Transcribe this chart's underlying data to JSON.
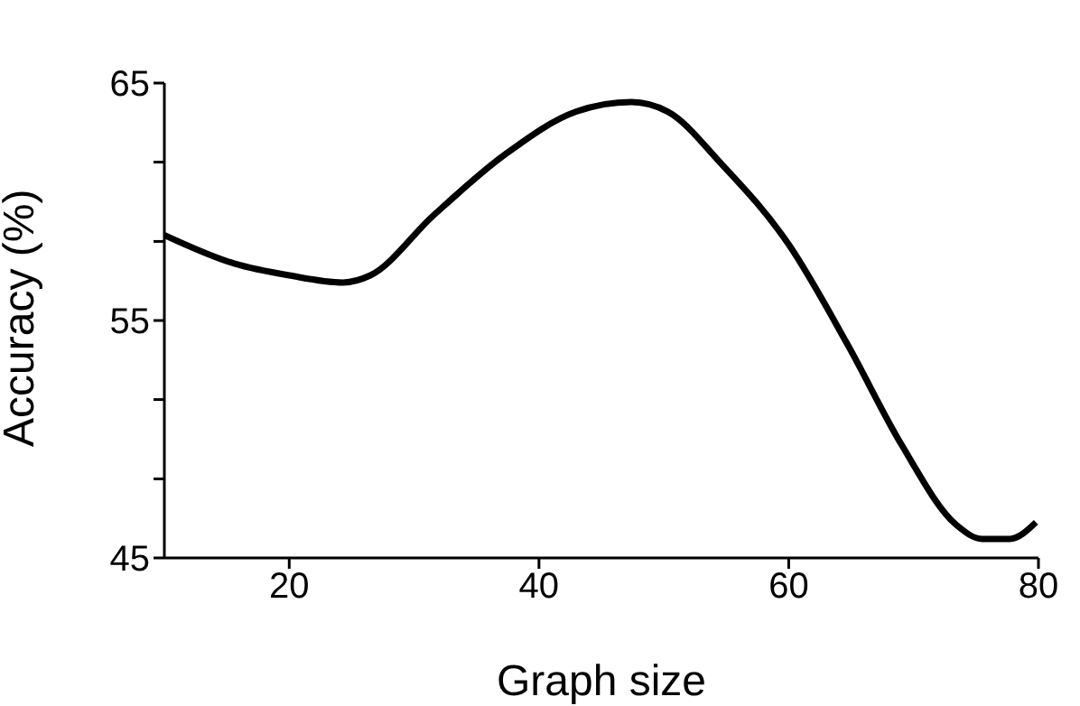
{
  "chart_data": {
    "type": "line",
    "xlabel": "Graph size",
    "ylabel": "Accuracy (%)",
    "x": [
      10,
      15.6,
      20,
      24.3,
      26.5,
      31.5,
      37.3,
      43,
      47.4,
      50.3,
      54.6,
      60,
      64.7,
      69,
      73.4,
      75.5,
      77.7,
      79.8
    ],
    "series": [
      {
        "color": "#000000",
        "values": [
          58.6,
          57.4,
          56.9,
          56.6,
          56.9,
          59.4,
          62.0,
          63.8,
          64.2,
          63.8,
          61.6,
          58.2,
          54.0,
          49.8,
          46.4,
          45.8,
          45.8,
          46.5
        ]
      }
    ],
    "xlim": [
      10,
      80
    ],
    "xticks": [
      20,
      40,
      60,
      80
    ],
    "ylim": [
      45,
      65
    ],
    "yticks": [
      45,
      {
        "value": 48.33,
        "label": null
      },
      {
        "value": 51.67,
        "label": null
      },
      55,
      {
        "value": 58.33,
        "label": null
      },
      {
        "value": 61.67,
        "label": null
      },
      65
    ],
    "grid": false,
    "legend": false,
    "marker": "none",
    "line_style": "solid"
  }
}
